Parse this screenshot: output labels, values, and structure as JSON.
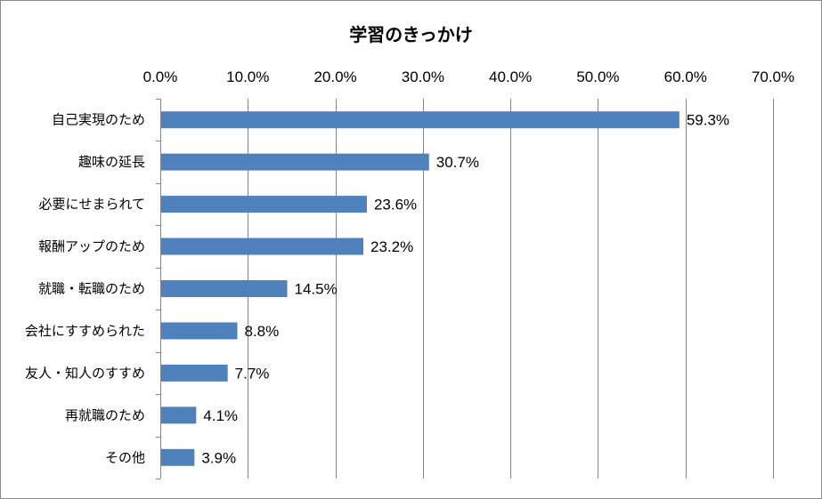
{
  "chart_data": {
    "type": "bar",
    "orientation": "horizontal",
    "title": "学習のきっかけ",
    "xlabel": "",
    "ylabel": "",
    "xlim": [
      0,
      70
    ],
    "x_ticks": [
      "0.0%",
      "10.0%",
      "20.0%",
      "30.0%",
      "40.0%",
      "50.0%",
      "60.0%",
      "70.0%"
    ],
    "x_tick_values": [
      0,
      10,
      20,
      30,
      40,
      50,
      60,
      70
    ],
    "x_axis_position": "top",
    "grid": true,
    "legend": "none",
    "bar_color": "#4f81bd",
    "categories": [
      "自己実現のため",
      "趣味の延長",
      "必要にせまられて",
      "報酬アップのため",
      "就職・転職のため",
      "会社にすすめられた",
      "友人・知人のすすめ",
      "再就職のため",
      "その他"
    ],
    "values": [
      59.3,
      30.7,
      23.6,
      23.2,
      14.5,
      8.8,
      7.7,
      4.1,
      3.9
    ],
    "data_labels": [
      "59.3%",
      "30.7%",
      "23.6%",
      "23.2%",
      "14.5%",
      "8.8%",
      "7.7%",
      "4.1%",
      "3.9%"
    ]
  }
}
